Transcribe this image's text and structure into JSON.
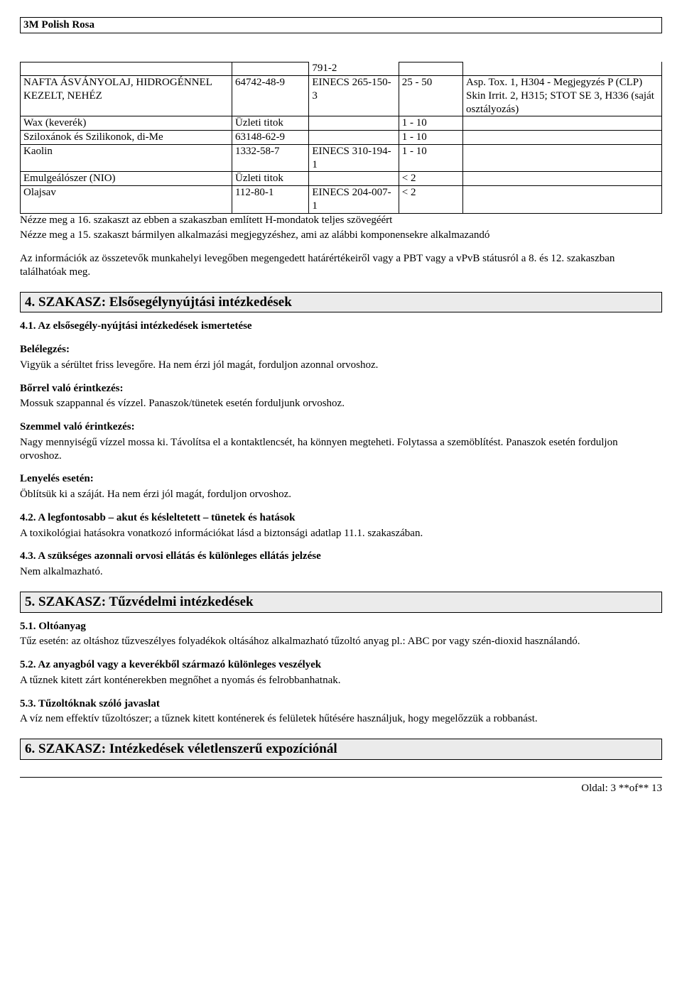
{
  "header": {
    "title": "3M Polish Rosa"
  },
  "table": {
    "rows": [
      {
        "name": "",
        "cas": "",
        "ec": "791-2",
        "pct": "",
        "notes": "",
        "ec_noTop": true,
        "notes_noTop": true
      },
      {
        "name": "NAFTA ÁSVÁNYOLAJ, HIDROGÉNNEL KEZELT, NEHÉZ",
        "cas": "64742-48-9",
        "ec": "EINECS 265-150-3",
        "pct": "25 -  50",
        "notes": "Asp. Tox. 1, H304 - Megjegyzés P (CLP)\nSkin Irrit. 2, H315; STOT SE 3, H336 (saját osztályozás)"
      },
      {
        "name": "Wax (keverék)",
        "cas": "Üzleti titok",
        "ec": "",
        "pct": "1 -  10",
        "notes": ""
      },
      {
        "name": "Sziloxánok és Szilikonok, di-Me",
        "cas": "63148-62-9",
        "ec": "",
        "pct": "1 -  10",
        "notes": ""
      },
      {
        "name": "Kaolin",
        "cas": "1332-58-7",
        "ec": "EINECS 310-194-1",
        "pct": "1 -  10",
        "notes": ""
      },
      {
        "name": "Emulgeálószer (NIO)",
        "cas": "Üzleti titok",
        "ec": "",
        "pct": "< 2",
        "notes": ""
      },
      {
        "name": "Olajsav",
        "cas": "112-80-1",
        "ec": "EINECS 204-007-1",
        "pct": "< 2",
        "notes": ""
      }
    ]
  },
  "notes": {
    "n1": "Nézze meg a 16. szakaszt az ebben a szakaszban említett H-mondatok teljes szövegéért",
    "n2": "Nézze meg a 15. szakaszt bármilyen alkalmazási megjegyzéshez, ami az alábbi komponensekre alkalmazandó",
    "n3": "Az információk az összetevők munkahelyi levegőben megengedett határértékeiről vagy a PBT  vagy a vPvB státusról a 8. és 12. szakaszban találhatóak meg."
  },
  "s4": {
    "title": "4. SZAKASZ: Elsősegélynyújtási intézkedések",
    "s41": "4.1. Az elsősegély-nyújtási intézkedések ismertetése",
    "inhaleH": "Belélegzés:",
    "inhaleT": "Vigyük a sérültet friss levegőre. Ha nem érzi jól magát, forduljon azonnal orvoshoz.",
    "skinH": "Bőrrel való érintkezés:",
    "skinT": "Mossuk szappannal és vízzel. Panaszok/tünetek esetén forduljunk orvoshoz.",
    "eyeH": "Szemmel való érintkezés:",
    "eyeT": "Nagy mennyiségű vízzel mossa ki. Távolítsa el a kontaktlencsét, ha könnyen megteheti. Folytassa a szemöblítést. Panaszok esetén forduljon orvoshoz.",
    "ingH": "Lenyelés esetén:",
    "ingT": "Öblítsük ki a száját. Ha nem érzi jól magát, forduljon orvoshoz.",
    "s42h": "4.2. A legfontosabb – akut és késleltetett – tünetek és hatások",
    "s42t": "A toxikológiai hatásokra vonatkozó információkat lásd a biztonsági adatlap 11.1. szakaszában.",
    "s43h": "4.3. A szükséges azonnali orvosi ellátás és különleges ellátás jelzése",
    "s43t": "Nem alkalmazható."
  },
  "s5": {
    "title": "5. SZAKASZ: Tűzvédelmi intézkedések",
    "s51h": "5.1. Oltóanyag",
    "s51t": "Tűz esetén: az oltáshoz tűzveszélyes folyadékok oltásához alkalmazható tűzoltó anyag pl.: ABC por vagy szén-dioxid használandó.",
    "s52h": "5.2. Az anyagból vagy a keverékből származó különleges veszélyek",
    "s52t": "A tűznek kitett zárt konténerekben megnőhet a nyomás és felrobbanhatnak.",
    "s53h": "5.3. Tűzoltóknak szóló javaslat",
    "s53t": "A víz nem effektív tűzoltószer; a tűznek kitett konténerek és felületek hűtésére használjuk, hogy megelőzzük a robbanást."
  },
  "s6": {
    "title": "6. SZAKASZ: Intézkedések véletlenszerű expozíciónál"
  },
  "footer": {
    "text": "Oldal: 3 **of**  13"
  }
}
